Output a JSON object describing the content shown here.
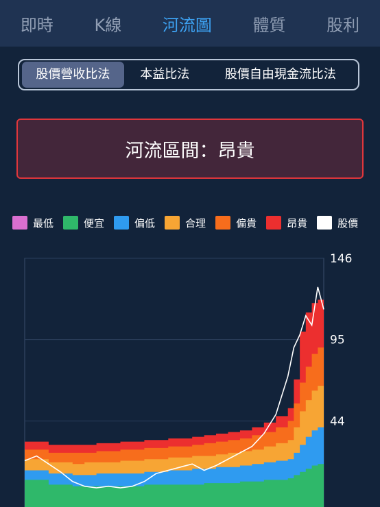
{
  "tabs": [
    "即時",
    "K線",
    "河流圖",
    "體質",
    "股利"
  ],
  "active_tab": 2,
  "methods": [
    "股價營收比法",
    "本益比法",
    "股價自由現金流比法"
  ],
  "active_method": 0,
  "status": {
    "label": "河流區間：昂貴"
  },
  "colors": {
    "background": "#12233a",
    "nav_bg": "#1f3352",
    "accent": "#3da2f2",
    "status_border": "#e0363b",
    "status_bg": "#43263a"
  },
  "chart_data": {
    "type": "area",
    "title": "",
    "xlabel": "",
    "ylabel": "",
    "y_ticks": [
      44,
      95,
      146
    ],
    "ylim": [
      -7,
      146
    ],
    "legend": [
      {
        "name": "最低",
        "color": "#d96fd0"
      },
      {
        "name": "便宜",
        "color": "#2fb86a"
      },
      {
        "name": "偏低",
        "color": "#2f9bf0"
      },
      {
        "name": "合理",
        "color": "#f7a534"
      },
      {
        "name": "偏貴",
        "color": "#f76d1c"
      },
      {
        "name": "昂貴",
        "color": "#ec2f2f"
      },
      {
        "name": "股價",
        "color": "#ffffff"
      }
    ],
    "x": [
      0,
      4,
      8,
      12,
      16,
      20,
      24,
      28,
      32,
      36,
      40,
      44,
      48,
      52,
      56,
      60,
      64,
      68,
      72,
      76,
      80,
      84,
      88,
      90,
      92,
      94,
      96,
      98,
      100
    ],
    "series": [
      {
        "name": "便宜",
        "values": [
          7,
          7,
          4,
          4,
          3,
          3,
          3,
          3,
          3,
          3,
          4,
          4,
          4,
          4,
          4,
          5,
          5,
          5,
          6,
          6,
          7,
          7,
          8,
          10,
          12,
          14,
          16,
          17,
          18
        ]
      },
      {
        "name": "偏低",
        "values": [
          13,
          13,
          11,
          11,
          10,
          10,
          11,
          11,
          11,
          11,
          12,
          12,
          13,
          13,
          14,
          14,
          15,
          15,
          16,
          17,
          18,
          19,
          20,
          24,
          29,
          34,
          38,
          40,
          42
        ]
      },
      {
        "name": "合理",
        "values": [
          20,
          20,
          18,
          18,
          17,
          18,
          18,
          18,
          19,
          19,
          20,
          20,
          21,
          21,
          22,
          22,
          23,
          24,
          25,
          26,
          28,
          30,
          32,
          40,
          50,
          57,
          63,
          66,
          68
        ]
      },
      {
        "name": "偏貴",
        "values": [
          26,
          26,
          24,
          24,
          24,
          24,
          25,
          25,
          26,
          26,
          27,
          27,
          28,
          28,
          29,
          30,
          31,
          32,
          33,
          35,
          37,
          40,
          44,
          55,
          68,
          78,
          86,
          90,
          92
        ]
      },
      {
        "name": "昂貴",
        "values": [
          31,
          31,
          29,
          29,
          29,
          29,
          30,
          30,
          31,
          31,
          32,
          32,
          33,
          33,
          34,
          35,
          36,
          37,
          38,
          40,
          43,
          47,
          52,
          70,
          100,
          112,
          118,
          120,
          121
        ]
      },
      {
        "name": "股價",
        "values": [
          19,
          22,
          17,
          12,
          6,
          3,
          2,
          3,
          2,
          3,
          6,
          11,
          13,
          15,
          17,
          13,
          16,
          20,
          24,
          28,
          36,
          48,
          72,
          90,
          98,
          110,
          104,
          128,
          114
        ]
      }
    ]
  }
}
